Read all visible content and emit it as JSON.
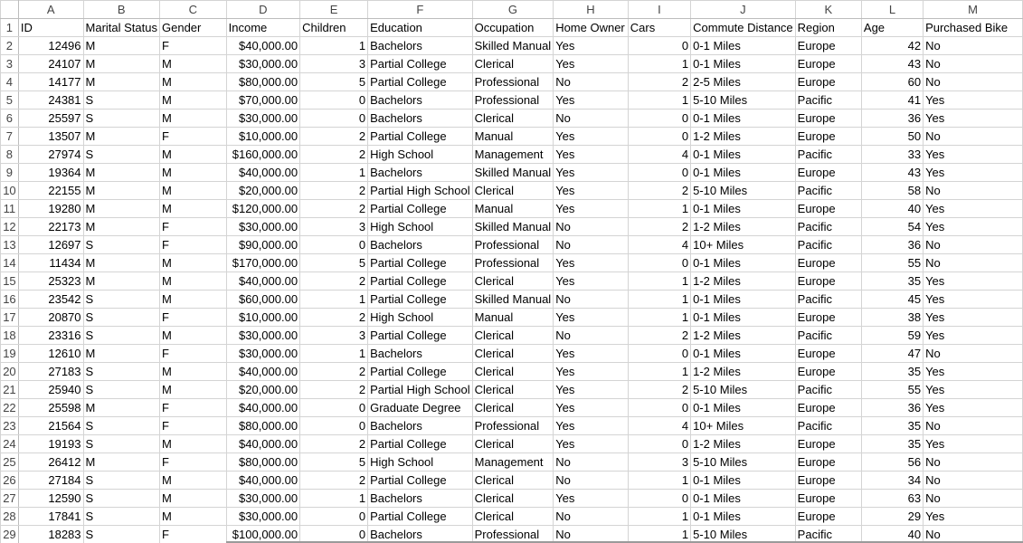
{
  "columns": [
    "A",
    "B",
    "C",
    "D",
    "E",
    "F",
    "G",
    "H",
    "I",
    "J",
    "K",
    "L",
    "M"
  ],
  "header_row_number": "1",
  "headers": [
    "ID",
    "Marital Status",
    "Gender",
    "Income",
    "Children",
    "Education",
    "Occupation",
    "Home Owner",
    "Cars",
    "Commute Distance",
    "Region",
    "Age",
    "Purchased Bike"
  ],
  "rows": [
    {
      "n": "2",
      "c": [
        "12496",
        "M",
        "F",
        "$40,000.00",
        "1",
        "Bachelors",
        "Skilled Manual",
        "Yes",
        "0",
        "0-1 Miles",
        "Europe",
        "42",
        "No"
      ]
    },
    {
      "n": "3",
      "c": [
        "24107",
        "M",
        "M",
        "$30,000.00",
        "3",
        "Partial College",
        "Clerical",
        "Yes",
        "1",
        "0-1 Miles",
        "Europe",
        "43",
        "No"
      ]
    },
    {
      "n": "4",
      "c": [
        "14177",
        "M",
        "M",
        "$80,000.00",
        "5",
        "Partial College",
        "Professional",
        "No",
        "2",
        "2-5 Miles",
        "Europe",
        "60",
        "No"
      ]
    },
    {
      "n": "5",
      "c": [
        "24381",
        "S",
        "M",
        "$70,000.00",
        "0",
        "Bachelors",
        "Professional",
        "Yes",
        "1",
        "5-10 Miles",
        "Pacific",
        "41",
        "Yes"
      ]
    },
    {
      "n": "6",
      "c": [
        "25597",
        "S",
        "M",
        "$30,000.00",
        "0",
        "Bachelors",
        "Clerical",
        "No",
        "0",
        "0-1 Miles",
        "Europe",
        "36",
        "Yes"
      ]
    },
    {
      "n": "7",
      "c": [
        "13507",
        "M",
        "F",
        "$10,000.00",
        "2",
        "Partial College",
        "Manual",
        "Yes",
        "0",
        "1-2 Miles",
        "Europe",
        "50",
        "No"
      ]
    },
    {
      "n": "8",
      "c": [
        "27974",
        "S",
        "M",
        "$160,000.00",
        "2",
        "High School",
        "Management",
        "Yes",
        "4",
        "0-1 Miles",
        "Pacific",
        "33",
        "Yes"
      ]
    },
    {
      "n": "9",
      "c": [
        "19364",
        "M",
        "M",
        "$40,000.00",
        "1",
        "Bachelors",
        "Skilled Manual",
        "Yes",
        "0",
        "0-1 Miles",
        "Europe",
        "43",
        "Yes"
      ]
    },
    {
      "n": "10",
      "c": [
        "22155",
        "M",
        "M",
        "$20,000.00",
        "2",
        "Partial High School",
        "Clerical",
        "Yes",
        "2",
        "5-10 Miles",
        "Pacific",
        "58",
        "No"
      ]
    },
    {
      "n": "11",
      "c": [
        "19280",
        "M",
        "M",
        "$120,000.00",
        "2",
        "Partial College",
        "Manual",
        "Yes",
        "1",
        "0-1 Miles",
        "Europe",
        "40",
        "Yes"
      ]
    },
    {
      "n": "12",
      "c": [
        "22173",
        "M",
        "F",
        "$30,000.00",
        "3",
        "High School",
        "Skilled Manual",
        "No",
        "2",
        "1-2 Miles",
        "Pacific",
        "54",
        "Yes"
      ]
    },
    {
      "n": "13",
      "c": [
        "12697",
        "S",
        "F",
        "$90,000.00",
        "0",
        "Bachelors",
        "Professional",
        "No",
        "4",
        "10+ Miles",
        "Pacific",
        "36",
        "No"
      ]
    },
    {
      "n": "14",
      "c": [
        "11434",
        "M",
        "M",
        "$170,000.00",
        "5",
        "Partial College",
        "Professional",
        "Yes",
        "0",
        "0-1 Miles",
        "Europe",
        "55",
        "No"
      ]
    },
    {
      "n": "15",
      "c": [
        "25323",
        "M",
        "M",
        "$40,000.00",
        "2",
        "Partial College",
        "Clerical",
        "Yes",
        "1",
        "1-2 Miles",
        "Europe",
        "35",
        "Yes"
      ]
    },
    {
      "n": "16",
      "c": [
        "23542",
        "S",
        "M",
        "$60,000.00",
        "1",
        "Partial College",
        "Skilled Manual",
        "No",
        "1",
        "0-1 Miles",
        "Pacific",
        "45",
        "Yes"
      ]
    },
    {
      "n": "17",
      "c": [
        "20870",
        "S",
        "F",
        "$10,000.00",
        "2",
        "High School",
        "Manual",
        "Yes",
        "1",
        "0-1 Miles",
        "Europe",
        "38",
        "Yes"
      ]
    },
    {
      "n": "18",
      "c": [
        "23316",
        "S",
        "M",
        "$30,000.00",
        "3",
        "Partial College",
        "Clerical",
        "No",
        "2",
        "1-2 Miles",
        "Pacific",
        "59",
        "Yes"
      ]
    },
    {
      "n": "19",
      "c": [
        "12610",
        "M",
        "F",
        "$30,000.00",
        "1",
        "Bachelors",
        "Clerical",
        "Yes",
        "0",
        "0-1 Miles",
        "Europe",
        "47",
        "No"
      ]
    },
    {
      "n": "20",
      "c": [
        "27183",
        "S",
        "M",
        "$40,000.00",
        "2",
        "Partial College",
        "Clerical",
        "Yes",
        "1",
        "1-2 Miles",
        "Europe",
        "35",
        "Yes"
      ]
    },
    {
      "n": "21",
      "c": [
        "25940",
        "S",
        "M",
        "$20,000.00",
        "2",
        "Partial High School",
        "Clerical",
        "Yes",
        "2",
        "5-10 Miles",
        "Pacific",
        "55",
        "Yes"
      ]
    },
    {
      "n": "22",
      "c": [
        "25598",
        "M",
        "F",
        "$40,000.00",
        "0",
        "Graduate Degree",
        "Clerical",
        "Yes",
        "0",
        "0-1 Miles",
        "Europe",
        "36",
        "Yes"
      ]
    },
    {
      "n": "23",
      "c": [
        "21564",
        "S",
        "F",
        "$80,000.00",
        "0",
        "Bachelors",
        "Professional",
        "Yes",
        "4",
        "10+ Miles",
        "Pacific",
        "35",
        "No"
      ]
    },
    {
      "n": "24",
      "c": [
        "19193",
        "S",
        "M",
        "$40,000.00",
        "2",
        "Partial College",
        "Clerical",
        "Yes",
        "0",
        "1-2 Miles",
        "Europe",
        "35",
        "Yes"
      ]
    },
    {
      "n": "25",
      "c": [
        "26412",
        "M",
        "F",
        "$80,000.00",
        "5",
        "High School",
        "Management",
        "No",
        "3",
        "5-10 Miles",
        "Europe",
        "56",
        "No"
      ]
    },
    {
      "n": "26",
      "c": [
        "27184",
        "S",
        "M",
        "$40,000.00",
        "2",
        "Partial College",
        "Clerical",
        "No",
        "1",
        "0-1 Miles",
        "Europe",
        "34",
        "No"
      ]
    },
    {
      "n": "27",
      "c": [
        "12590",
        "S",
        "M",
        "$30,000.00",
        "1",
        "Bachelors",
        "Clerical",
        "Yes",
        "0",
        "0-1 Miles",
        "Europe",
        "63",
        "No"
      ]
    },
    {
      "n": "28",
      "c": [
        "17841",
        "S",
        "M",
        "$30,000.00",
        "0",
        "Partial College",
        "Clerical",
        "No",
        "1",
        "0-1 Miles",
        "Europe",
        "29",
        "Yes"
      ]
    },
    {
      "n": "29",
      "c": [
        "18283",
        "S",
        "F",
        "$100,000.00",
        "0",
        "Bachelors",
        "Professional",
        "No",
        "1",
        "5-10 Miles",
        "Pacific",
        "40",
        "No"
      ]
    }
  ]
}
